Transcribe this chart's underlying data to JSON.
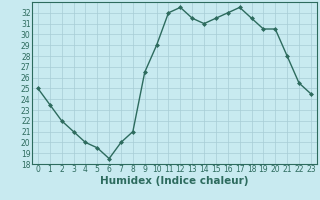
{
  "x": [
    0,
    1,
    2,
    3,
    4,
    5,
    6,
    7,
    8,
    9,
    10,
    11,
    12,
    13,
    14,
    15,
    16,
    17,
    18,
    19,
    20,
    21,
    22,
    23
  ],
  "y": [
    25.0,
    23.5,
    22.0,
    21.0,
    20.0,
    19.5,
    18.5,
    20.0,
    21.0,
    26.5,
    29.0,
    32.0,
    32.5,
    31.5,
    31.0,
    31.5,
    32.0,
    32.5,
    31.5,
    30.5,
    30.5,
    28.0,
    25.5,
    24.5
  ],
  "line_color": "#2d6b5e",
  "marker": "D",
  "marker_size": 2.0,
  "background_color": "#c8eaf0",
  "grid_color": "#a8cdd5",
  "xlabel": "Humidex (Indice chaleur)",
  "ylim": [
    18,
    33
  ],
  "xlim": [
    -0.5,
    23.5
  ],
  "yticks": [
    18,
    19,
    20,
    21,
    22,
    23,
    24,
    25,
    26,
    27,
    28,
    29,
    30,
    31,
    32
  ],
  "xticks": [
    0,
    1,
    2,
    3,
    4,
    5,
    6,
    7,
    8,
    9,
    10,
    11,
    12,
    13,
    14,
    15,
    16,
    17,
    18,
    19,
    20,
    21,
    22,
    23
  ],
  "tick_fontsize": 5.5,
  "xlabel_fontsize": 7.5,
  "label_color": "#2d6b5e",
  "linewidth": 1.0
}
